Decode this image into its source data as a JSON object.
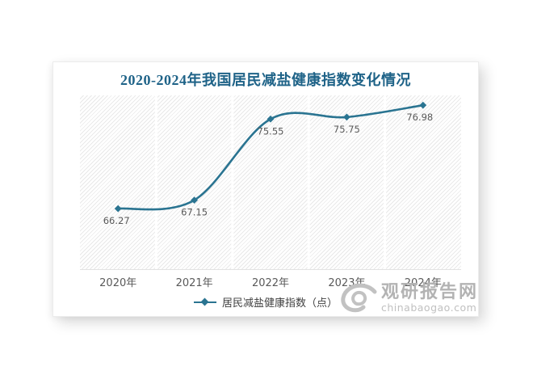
{
  "title": "2020-2024年我国居民减盐健康指数变化情况",
  "chart_data": {
    "type": "line",
    "smooth": true,
    "categories": [
      "2020年",
      "2021年",
      "2022年",
      "2023年",
      "2024年"
    ],
    "series": [
      {
        "name": "居民减盐健康指数（点）",
        "values": [
          66.27,
          67.15,
          75.55,
          75.75,
          76.98
        ]
      }
    ],
    "data_labels": [
      "66.27",
      "67.15",
      "75.55",
      "75.75",
      "76.98"
    ],
    "title": "2020-2024年我国居民减盐健康指数变化情况",
    "xlabel": "",
    "ylabel": "",
    "ylim": [
      60,
      78
    ],
    "grid": "vertical-white-lines",
    "legend_position": "bottom",
    "line_color": "#2a7491",
    "marker": "diamond",
    "label_color": "#595959",
    "plot_hatch_color": "#e9e9e9"
  },
  "legend": {
    "label": "居民减盐健康指数（点）"
  },
  "watermark": {
    "name": "观研报告网",
    "url_text": "chinabaogao.com"
  },
  "colors": {
    "title": "#1f6388",
    "accent": "#2a7491",
    "axis_label": "#595959",
    "watermark_gray": "#b3b3b3"
  }
}
